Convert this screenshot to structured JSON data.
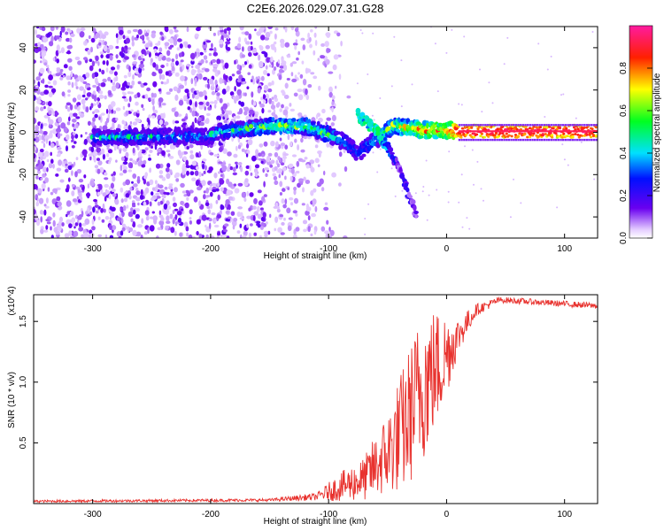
{
  "title": "C2E6.2026.029.07.31.G28",
  "chart_data": [
    {
      "type": "heatmap",
      "name": "spectrogram",
      "xlabel": "Height of straight line (km)",
      "ylabel": "Frequency (Hz)",
      "xlim": [
        -350,
        128
      ],
      "ylim": [
        -50,
        50
      ],
      "xticks": [
        -300,
        -200,
        -100,
        0,
        100
      ],
      "yticks": [
        -40,
        -20,
        0,
        20,
        40
      ],
      "xtick_labels": [
        "-300",
        "-200",
        "-100",
        "0",
        "100"
      ],
      "ytick_labels": [
        "-40",
        "-20",
        "0",
        "20",
        "40"
      ],
      "colorbar": {
        "label": "Normalized spectral amplitude",
        "range": [
          0,
          1
        ],
        "ticks": [
          0.0,
          0.2,
          0.4,
          0.6,
          0.8
        ],
        "tick_labels": [
          "0.0",
          "0.2",
          "0.4",
          "0.6",
          "0.8"
        ]
      },
      "noise_region": {
        "x_from": -350,
        "x_to": -150,
        "fade_to": -80
      },
      "main_track": [
        {
          "x": -300,
          "y": -2.5,
          "amp": 0.35
        },
        {
          "x": -250,
          "y": -2,
          "amp": 0.38
        },
        {
          "x": -200,
          "y": -2,
          "amp": 0.32
        },
        {
          "x": -195,
          "y": 0,
          "amp": 0.4
        },
        {
          "x": -150,
          "y": 3,
          "amp": 0.5
        },
        {
          "x": -120,
          "y": 3,
          "amp": 0.52
        },
        {
          "x": -100,
          "y": -1,
          "amp": 0.45
        },
        {
          "x": -85,
          "y": -5,
          "amp": 0.4
        },
        {
          "x": -75,
          "y": -10,
          "amp": 0.3
        },
        {
          "x": -45,
          "y": 3,
          "amp": 0.55
        },
        {
          "x": -20,
          "y": 1,
          "amp": 0.7
        },
        {
          "x": 0,
          "y": 1,
          "amp": 0.75
        },
        {
          "x": 10,
          "y": 0.5,
          "amp": 0.95
        },
        {
          "x": 128,
          "y": 0.5,
          "amp": 0.95
        }
      ],
      "branch_track": [
        {
          "x": -75,
          "y": 8,
          "amp": 0.4
        },
        {
          "x": -60,
          "y": 1,
          "amp": 0.45
        },
        {
          "x": -50,
          "y": -7,
          "amp": 0.3
        },
        {
          "x": -40,
          "y": -18,
          "amp": 0.15
        },
        {
          "x": -25,
          "y": -40,
          "amp": 0.1
        }
      ]
    },
    {
      "type": "line",
      "name": "snr",
      "xlabel": "Height of straight line (km)",
      "ylabel": "SNR (10 * v/v)",
      "scale_label": "(x10^4)",
      "color": "#e8322e",
      "xlim": [
        -350,
        128
      ],
      "ylim": [
        0,
        1.72
      ],
      "xticks": [
        -300,
        -200,
        -100,
        0,
        100
      ],
      "yticks": [
        0.5,
        1.0,
        1.5
      ],
      "xtick_labels": [
        "-300",
        "-200",
        "-100",
        "0",
        "100"
      ],
      "ytick_labels": [
        "0.5",
        "1.0",
        "1.5"
      ],
      "envelope": [
        {
          "x": -350,
          "y": 0.02,
          "jitter": 0.01
        },
        {
          "x": -150,
          "y": 0.03,
          "jitter": 0.012
        },
        {
          "x": -110,
          "y": 0.06,
          "jitter": 0.03
        },
        {
          "x": -90,
          "y": 0.15,
          "jitter": 0.12
        },
        {
          "x": -70,
          "y": 0.22,
          "jitter": 0.18
        },
        {
          "x": -50,
          "y": 0.45,
          "jitter": 0.35
        },
        {
          "x": -35,
          "y": 0.7,
          "jitter": 0.55
        },
        {
          "x": -20,
          "y": 1.05,
          "jitter": 0.65
        },
        {
          "x": -5,
          "y": 1.2,
          "jitter": 0.45
        },
        {
          "x": 10,
          "y": 1.4,
          "jitter": 0.15
        },
        {
          "x": 25,
          "y": 1.6,
          "jitter": 0.05
        },
        {
          "x": 45,
          "y": 1.68,
          "jitter": 0.025
        },
        {
          "x": 128,
          "y": 1.63,
          "jitter": 0.025
        }
      ]
    }
  ]
}
